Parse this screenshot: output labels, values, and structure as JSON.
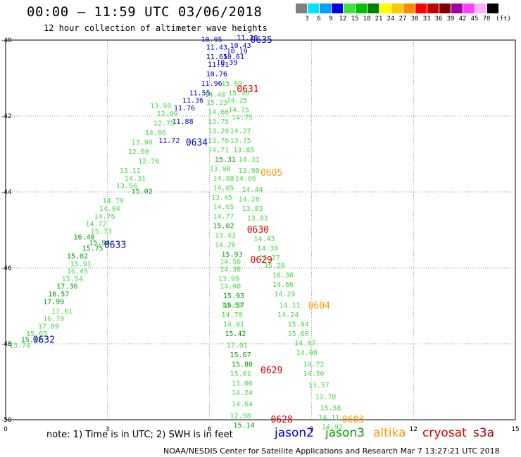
{
  "header": {
    "title": "00:00 – 11:59 UTC 03/06/2018",
    "subtitle": "12 hour collection of altimeter wave heights"
  },
  "color_scale": {
    "unit": "(ft)",
    "swatches": [
      {
        "label": "3",
        "color": "#808080"
      },
      {
        "label": "6",
        "color": "#00e5ff"
      },
      {
        "label": "9",
        "color": "#00a0ff"
      },
      {
        "label": "12",
        "color": "#0000e0"
      },
      {
        "label": "15",
        "color": "#40e040"
      },
      {
        "label": "18",
        "color": "#00c000"
      },
      {
        "label": "21",
        "color": "#008000"
      },
      {
        "label": "24",
        "color": "#ffff00"
      },
      {
        "label": "27",
        "color": "#ffc800"
      },
      {
        "label": "30",
        "color": "#ff8c00"
      },
      {
        "label": "33",
        "color": "#ff0000"
      },
      {
        "label": "36",
        "color": "#c00000"
      },
      {
        "label": "39",
        "color": "#800000"
      },
      {
        "label": "42",
        "color": "#a000a0"
      },
      {
        "label": "45",
        "color": "#ff40ff"
      },
      {
        "label": "70",
        "color": "#ffb0ff"
      },
      {
        "label": "",
        "color": "#000000"
      }
    ]
  },
  "axes": {
    "x_ticks": [
      "0",
      "3",
      "6",
      "9",
      "12",
      "15"
    ],
    "y_ticks": [
      "40",
      "42",
      "44",
      "46",
      "48",
      "50"
    ],
    "x_range": [
      0,
      15
    ],
    "y_range": [
      -40,
      -50
    ]
  },
  "colors": {
    "jason2": "#0000cc",
    "jason3": "#00a000",
    "jason3_light": "#44dd44",
    "altika": "#ff9900",
    "cryosat": "#dd0000",
    "s3a": "#aa0000"
  },
  "note": "note: 1) Time is in UTC; 2) SWH is in feet",
  "legend": [
    {
      "name": "jason2",
      "color": "#0000cc"
    },
    {
      "name": "jason3",
      "color": "#00a000"
    },
    {
      "name": "altika",
      "color": "#ff9900"
    },
    {
      "name": "cryosat",
      "color": "#dd0000"
    },
    {
      "name": "s3a",
      "color": "#aa0000"
    }
  ],
  "footer": "NOAA/NESDIS Center for Satellite Applications and Research   Mar  7 13:27:21 UTC 2018",
  "times": [
    {
      "label": "0635",
      "lon": 7.2,
      "lat": -40.0,
      "color": "#0000cc"
    },
    {
      "label": "0631",
      "lon": 6.8,
      "lat": -41.3,
      "color": "#dd0000"
    },
    {
      "label": "0634",
      "lon": 5.3,
      "lat": -42.7,
      "color": "#0000cc"
    },
    {
      "label": "0605",
      "lon": 7.5,
      "lat": -43.5,
      "color": "#ff9900"
    },
    {
      "label": "0630",
      "lon": 7.1,
      "lat": -45.0,
      "color": "#dd0000"
    },
    {
      "label": "0633",
      "lon": 2.9,
      "lat": -45.4,
      "color": "#0000cc"
    },
    {
      "label": "0629",
      "lon": 7.2,
      "lat": -45.8,
      "color": "#dd0000"
    },
    {
      "label": "0604",
      "lon": 8.9,
      "lat": -47.0,
      "color": "#ff9900"
    },
    {
      "label": "0632",
      "lon": 0.8,
      "lat": -47.9,
      "color": "#0000cc"
    },
    {
      "label": "0629",
      "lon": 7.5,
      "lat": -48.7,
      "color": "#dd0000"
    },
    {
      "label": "0628",
      "lon": 7.8,
      "lat": -50.0,
      "color": "#dd0000"
    },
    {
      "label": "0603",
      "lon": 9.9,
      "lat": -50.0,
      "color": "#ff9900"
    }
  ],
  "tracks": [
    {
      "color": "#0000cc",
      "points": [
        {
          "lon": 5.75,
          "lat": -40.05,
          "v": "10.95"
        },
        {
          "lon": 5.9,
          "lat": -40.25,
          "v": "11.43"
        },
        {
          "lon": 5.9,
          "lat": -40.5,
          "v": "11.65"
        },
        {
          "lon": 5.95,
          "lat": -40.7,
          "v": "11.91"
        },
        {
          "lon": 5.9,
          "lat": -40.95,
          "v": "10.76"
        },
        {
          "lon": 5.75,
          "lat": -41.2,
          "v": "11.96"
        },
        {
          "lon": 5.4,
          "lat": -41.45,
          "v": "11.55"
        },
        {
          "lon": 5.2,
          "lat": -41.65,
          "v": "11.36"
        },
        {
          "lon": 4.95,
          "lat": -41.85,
          "v": "11.76"
        },
        {
          "lon": 4.9,
          "lat": -42.2,
          "v": "11.88"
        },
        {
          "lon": 4.5,
          "lat": -42.7,
          "v": "11.72"
        }
      ]
    },
    {
      "color": "#0000cc",
      "points": [
        {
          "lon": 6.8,
          "lat": -40.0,
          "v": "11.36"
        },
        {
          "lon": 6.6,
          "lat": -40.2,
          "v": "10.43"
        },
        {
          "lon": 6.5,
          "lat": -40.35,
          "v": "10.19"
        },
        {
          "lon": 6.4,
          "lat": -40.5,
          "v": "10.61"
        },
        {
          "lon": 6.2,
          "lat": -40.65,
          "v": "10.39"
        }
      ]
    },
    {
      "color": "#44dd44",
      "points": [
        {
          "lon": 6.35,
          "lat": -41.2,
          "v": "15.69"
        },
        {
          "lon": 6.55,
          "lat": -41.45,
          "v": "15.96"
        },
        {
          "lon": 6.5,
          "lat": -41.65,
          "v": "14.25"
        },
        {
          "lon": 6.55,
          "lat": -41.9,
          "v": "14.75"
        },
        {
          "lon": 6.65,
          "lat": -42.1,
          "v": "14.75"
        },
        {
          "lon": 6.6,
          "lat": -42.45,
          "v": "14.27"
        },
        {
          "lon": 6.6,
          "lat": -42.7,
          "v": "13.75"
        },
        {
          "lon": 6.7,
          "lat": -42.95,
          "v": "13.85"
        },
        {
          "lon": 6.85,
          "lat": -43.2,
          "v": "14.31"
        },
        {
          "lon": 6.85,
          "lat": -43.5,
          "v": "13.99"
        },
        {
          "lon": 6.75,
          "lat": -43.7,
          "v": "14.06"
        },
        {
          "lon": 6.95,
          "lat": -44.0,
          "v": "14.44"
        },
        {
          "lon": 6.85,
          "lat": -44.25,
          "v": "14.26"
        },
        {
          "lon": 6.95,
          "lat": -44.5,
          "v": "13.83"
        },
        {
          "lon": 7.1,
          "lat": -44.75,
          "v": "13.03"
        },
        {
          "lon": 7.3,
          "lat": -45.3,
          "v": "14.43"
        },
        {
          "lon": 7.4,
          "lat": -45.55,
          "v": "14.30"
        },
        {
          "lon": 7.45,
          "lat": -45.8,
          "v": "15.27"
        },
        {
          "lon": 7.6,
          "lat": -46.0,
          "v": "15.20"
        },
        {
          "lon": 7.85,
          "lat": -46.25,
          "v": "16.36"
        },
        {
          "lon": 7.85,
          "lat": -46.5,
          "v": "14.66"
        },
        {
          "lon": 7.9,
          "lat": -46.75,
          "v": "14.29"
        },
        {
          "lon": 8.05,
          "lat": -47.05,
          "v": "14.11"
        },
        {
          "lon": 8.0,
          "lat": -47.3,
          "v": "14.24"
        },
        {
          "lon": 8.3,
          "lat": -47.55,
          "v": "15.94"
        },
        {
          "lon": 8.3,
          "lat": -47.8,
          "v": "15.60"
        },
        {
          "lon": 8.5,
          "lat": -48.05,
          "v": "14.07"
        },
        {
          "lon": 8.55,
          "lat": -48.3,
          "v": "14.00"
        },
        {
          "lon": 8.75,
          "lat": -48.6,
          "v": "14.72"
        },
        {
          "lon": 8.75,
          "lat": -48.85,
          "v": "14.30"
        },
        {
          "lon": 8.9,
          "lat": -49.15,
          "v": "13.57"
        },
        {
          "lon": 9.1,
          "lat": -49.45,
          "v": "13.70"
        },
        {
          "lon": 9.25,
          "lat": -49.75,
          "v": "15.58"
        },
        {
          "lon": 9.2,
          "lat": -50.0,
          "v": "14.11"
        },
        {
          "lon": 9.3,
          "lat": -50.25,
          "v": "14.92"
        }
      ]
    },
    {
      "color": "#44dd44",
      "points": [
        {
          "lon": 4.45,
          "lat": -42.0,
          "v": "12.09"
        },
        {
          "lon": 4.35,
          "lat": -42.25,
          "v": "12.75"
        },
        {
          "lon": 4.1,
          "lat": -42.5,
          "v": "14.06"
        },
        {
          "lon": 3.7,
          "lat": -42.75,
          "v": "13.90"
        },
        {
          "lon": 3.6,
          "lat": -43.0,
          "v": "12.60"
        },
        {
          "lon": 3.9,
          "lat": -43.25,
          "v": "12.76"
        },
        {
          "lon": 3.35,
          "lat": -43.5,
          "v": "13.11"
        },
        {
          "lon": 3.5,
          "lat": -43.7,
          "v": "14.31"
        },
        {
          "lon": 3.25,
          "lat": -43.9,
          "v": "13.56"
        },
        {
          "lon": 2.85,
          "lat": -44.3,
          "v": "14.79"
        },
        {
          "lon": 2.75,
          "lat": -44.5,
          "v": "14.04"
        },
        {
          "lon": 2.6,
          "lat": -44.7,
          "v": "14.76"
        },
        {
          "lon": 2.35,
          "lat": -44.9,
          "v": "14.72"
        },
        {
          "lon": 2.5,
          "lat": -45.1,
          "v": "15.73"
        },
        {
          "lon": 1.9,
          "lat": -45.95,
          "v": "15.91"
        },
        {
          "lon": 1.8,
          "lat": -46.15,
          "v": "16.45"
        },
        {
          "lon": 1.65,
          "lat": -46.35,
          "v": "15.54"
        },
        {
          "lon": 1.35,
          "lat": -47.2,
          "v": "17.61"
        },
        {
          "lon": 1.1,
          "lat": -47.4,
          "v": "16.79"
        },
        {
          "lon": 0.95,
          "lat": -47.6,
          "v": "17.89"
        },
        {
          "lon": 0.6,
          "lat": -47.8,
          "v": "15.65"
        },
        {
          "lon": 0.1,
          "lat": -48.1,
          "v": "13.74"
        },
        {
          "lon": 5.85,
          "lat": -41.5,
          "v": "14.40"
        },
        {
          "lon": 5.9,
          "lat": -41.7,
          "v": "15.23"
        },
        {
          "lon": 5.95,
          "lat": -41.95,
          "v": "14.66"
        },
        {
          "lon": 5.95,
          "lat": -42.2,
          "v": "13.75"
        },
        {
          "lon": 5.95,
          "lat": -42.45,
          "v": "13.29"
        },
        {
          "lon": 5.95,
          "lat": -42.7,
          "v": "13.76"
        },
        {
          "lon": 5.95,
          "lat": -42.95,
          "v": "14.71"
        },
        {
          "lon": 6.0,
          "lat": -43.45,
          "v": "13.98"
        },
        {
          "lon": 6.1,
          "lat": -43.7,
          "v": "14.88"
        },
        {
          "lon": 6.1,
          "lat": -43.95,
          "v": "14.05"
        },
        {
          "lon": 6.05,
          "lat": -44.2,
          "v": "13.45"
        },
        {
          "lon": 6.1,
          "lat": -44.45,
          "v": "14.65"
        },
        {
          "lon": 6.1,
          "lat": -44.7,
          "v": "14.77"
        },
        {
          "lon": 6.15,
          "lat": -45.2,
          "v": "13.43"
        },
        {
          "lon": 6.15,
          "lat": -45.45,
          "v": "14.26"
        },
        {
          "lon": 6.3,
          "lat": -45.9,
          "v": "14.50"
        },
        {
          "lon": 6.3,
          "lat": -46.1,
          "v": "14.38"
        },
        {
          "lon": 6.25,
          "lat": -46.35,
          "v": "13.99"
        },
        {
          "lon": 6.3,
          "lat": -46.55,
          "v": "14.90"
        },
        {
          "lon": 6.35,
          "lat": -47.05,
          "v": "14.57"
        },
        {
          "lon": 6.35,
          "lat": -47.3,
          "v": "14.70"
        },
        {
          "lon": 6.4,
          "lat": -47.55,
          "v": "14.91"
        },
        {
          "lon": 6.5,
          "lat": -48.1,
          "v": "17.01"
        },
        {
          "lon": 6.6,
          "lat": -48.85,
          "v": "15.01"
        },
        {
          "lon": 6.65,
          "lat": -49.1,
          "v": "13.06"
        },
        {
          "lon": 6.65,
          "lat": -49.35,
          "v": "14.24"
        },
        {
          "lon": 6.65,
          "lat": -49.65,
          "v": "14.64"
        },
        {
          "lon": 6.6,
          "lat": -49.95,
          "v": "12.98"
        },
        {
          "lon": 4.25,
          "lat": -41.8,
          "v": "13.98"
        }
      ]
    },
    {
      "color": "#00a000",
      "points": [
        {
          "lon": 3.7,
          "lat": -44.05,
          "v": "15.02"
        },
        {
          "lon": 2.0,
          "lat": -45.25,
          "v": "16.40"
        },
        {
          "lon": 2.45,
          "lat": -45.4,
          "v": "15.94"
        },
        {
          "lon": 2.25,
          "lat": -45.55,
          "v": "15.75"
        },
        {
          "lon": 1.8,
          "lat": -45.75,
          "v": "15.02"
        },
        {
          "lon": 1.5,
          "lat": -46.55,
          "v": "17.36"
        },
        {
          "lon": 1.25,
          "lat": -46.75,
          "v": "16.57"
        },
        {
          "lon": 1.1,
          "lat": -46.95,
          "v": "17.99"
        },
        {
          "lon": 0.45,
          "lat": -47.95,
          "v": "15.12"
        },
        {
          "lon": 6.15,
          "lat": -43.2,
          "v": "15.31"
        },
        {
          "lon": 6.1,
          "lat": -44.95,
          "v": "15.02"
        },
        {
          "lon": 6.35,
          "lat": -45.7,
          "v": "15.93"
        },
        {
          "lon": 6.4,
          "lat": -46.8,
          "v": "15.93"
        },
        {
          "lon": 6.4,
          "lat": -47.05,
          "v": "15.57"
        },
        {
          "lon": 6.45,
          "lat": -47.8,
          "v": "15.42"
        },
        {
          "lon": 6.6,
          "lat": -48.35,
          "v": "15.67"
        },
        {
          "lon": 6.65,
          "lat": -48.6,
          "v": "15.80"
        },
        {
          "lon": 6.7,
          "lat": -50.2,
          "v": "15.14"
        }
      ]
    }
  ]
}
